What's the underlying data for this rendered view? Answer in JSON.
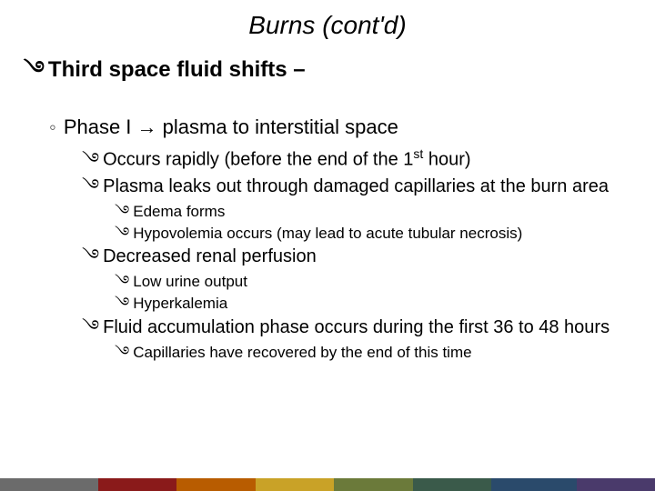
{
  "title": "Burns (cont'd)",
  "bullets": {
    "swirl": "࿓",
    "circle": "◦"
  },
  "lvl1": {
    "text": "Third space fluid shifts –"
  },
  "lvl2": {
    "text": "Phase I → plasma to interstitial space"
  },
  "lvl3a_pre": "Occurs rapidly (before the end of the 1",
  "lvl3a_sup": "st",
  "lvl3a_post": " hour)",
  "lvl3b": "Plasma leaks out through damaged capillaries at the burn area",
  "lvl4a": "Edema forms",
  "lvl4b": "Hypovolemia occurs (may lead to acute tubular necrosis)",
  "lvl3c": "Decreased renal perfusion",
  "lvl4c": "Low urine output",
  "lvl4d": "Hyperkalemia",
  "lvl3d": "Fluid accumulation phase occurs during the first 36 to 48 hours",
  "lvl4e": "Capillaries have recovered by the end of this time",
  "footer_colors": [
    {
      "c": "#6b6b6b",
      "w": 15
    },
    {
      "c": "#8a1a1a",
      "w": 12
    },
    {
      "c": "#b85c00",
      "w": 12
    },
    {
      "c": "#c9a227",
      "w": 12
    },
    {
      "c": "#6b7a3a",
      "w": 12
    },
    {
      "c": "#3a5a4a",
      "w": 12
    },
    {
      "c": "#2a4a6b",
      "w": 13
    },
    {
      "c": "#4a3a6b",
      "w": 12
    }
  ]
}
